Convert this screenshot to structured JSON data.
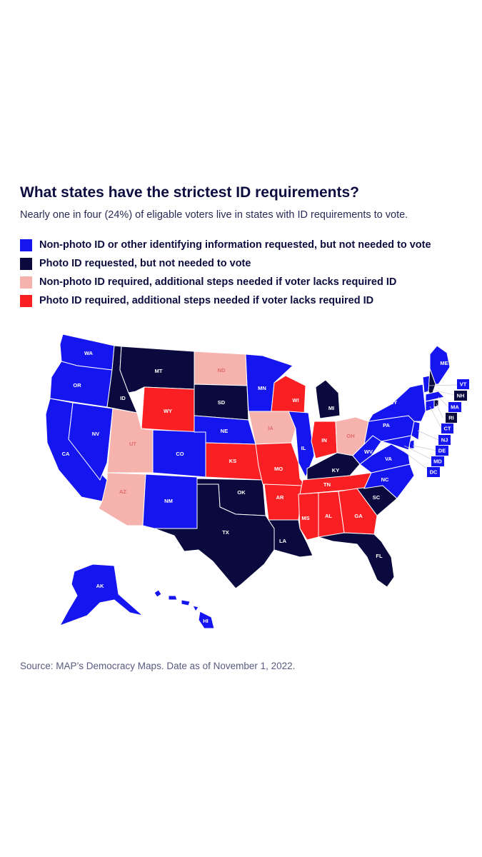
{
  "title": "What states have the strictest ID requirements?",
  "subtitle": "Nearly one in four (24%) of eligable voters live in states with ID requirements to vote.",
  "colors": {
    "nonphoto_requested": "#1515f0",
    "photo_requested": "#0a0a3e",
    "nonphoto_required": "#f6b3ae",
    "photo_required": "#fa1f23"
  },
  "legend": [
    {
      "key": "nonphoto_requested",
      "label": "Non-photo ID or other identifying information requested, but not needed to vote"
    },
    {
      "key": "photo_requested",
      "label": "Photo ID requested, but not needed to vote"
    },
    {
      "key": "nonphoto_required",
      "label": "Non-photo ID required, additional steps needed if voter lacks required ID"
    },
    {
      "key": "photo_required",
      "label": "Photo ID required, additional steps needed if voter lacks required ID"
    }
  ],
  "states": {
    "WA": "nonphoto_requested",
    "OR": "nonphoto_requested",
    "CA": "nonphoto_requested",
    "NV": "nonphoto_requested",
    "ID": "photo_requested",
    "MT": "photo_requested",
    "WY": "photo_required",
    "UT": "nonphoto_required",
    "AZ": "nonphoto_required",
    "CO": "nonphoto_requested",
    "NM": "nonphoto_requested",
    "ND": "nonphoto_required",
    "SD": "photo_requested",
    "NE": "nonphoto_requested",
    "KS": "photo_required",
    "OK": "photo_requested",
    "TX": "photo_requested",
    "MN": "nonphoto_requested",
    "IA": "nonphoto_required",
    "MO": "photo_required",
    "AR": "photo_required",
    "LA": "photo_requested",
    "WI": "photo_required",
    "IL": "nonphoto_requested",
    "MI": "photo_requested",
    "IN": "photo_required",
    "OH": "nonphoto_required",
    "KY": "photo_requested",
    "TN": "photo_required",
    "MS": "photo_required",
    "AL": "photo_required",
    "GA": "photo_required",
    "FL": "photo_requested",
    "SC": "photo_requested",
    "NC": "nonphoto_requested",
    "VA": "nonphoto_requested",
    "WV": "nonphoto_requested",
    "PA": "nonphoto_requested",
    "NY": "nonphoto_requested",
    "ME": "nonphoto_requested",
    "AK": "nonphoto_requested",
    "HI": "nonphoto_requested",
    "VT": "nonphoto_requested",
    "NH": "photo_requested",
    "MA": "nonphoto_requested",
    "RI": "photo_requested",
    "CT": "nonphoto_requested",
    "NJ": "nonphoto_requested",
    "DE": "nonphoto_requested",
    "MD": "nonphoto_requested",
    "DC": "nonphoto_requested"
  },
  "source": "Source: MAP’s Democracy Maps. Date as of November 1, 2022."
}
